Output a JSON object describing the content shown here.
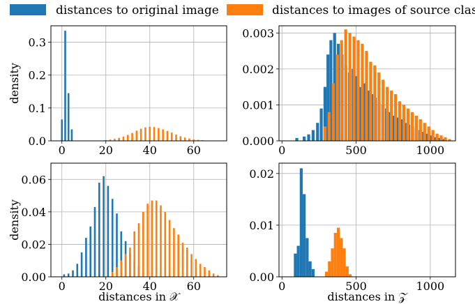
{
  "legend": {
    "entries": [
      {
        "label": "distances to original image",
        "color": "#1f77b4"
      },
      {
        "label": "distances to images of source class",
        "color": "#ff7f0e"
      }
    ]
  },
  "chart_data": [
    {
      "type": "bar",
      "panel": "top-left",
      "xlabel": "",
      "ylabel": "density",
      "xlim": [
        -5,
        75
      ],
      "ylim": [
        0,
        0.35
      ],
      "xticks": [
        "0",
        "20",
        "40",
        "60"
      ],
      "yticks": [
        "0.0",
        "0.1",
        "0.2",
        "0.3"
      ],
      "grid": true,
      "series": [
        {
          "name": "distances to original image",
          "x": [
            0,
            1.5,
            3,
            4.5
          ],
          "values": [
            0.065,
            0.335,
            0.145,
            0.035
          ]
        },
        {
          "name": "distances to images of source class",
          "x": [
            20,
            22,
            24,
            26,
            28,
            30,
            32,
            34,
            36,
            38,
            40,
            42,
            44,
            46,
            48,
            50,
            52,
            54,
            56,
            58,
            60,
            62,
            64,
            66
          ],
          "values": [
            0.002,
            0.004,
            0.006,
            0.009,
            0.013,
            0.018,
            0.024,
            0.031,
            0.037,
            0.041,
            0.043,
            0.042,
            0.039,
            0.035,
            0.03,
            0.025,
            0.019,
            0.014,
            0.01,
            0.007,
            0.004,
            0.003,
            0.002,
            0.001
          ]
        }
      ]
    },
    {
      "type": "bar",
      "panel": "top-right",
      "xlabel": "",
      "ylabel": "",
      "xlim": [
        -20,
        1170
      ],
      "ylim": [
        0,
        0.0032
      ],
      "xticks": [
        "0",
        "500",
        "1000"
      ],
      "yticks": [
        "0.000",
        "0.001",
        "0.002",
        "0.003"
      ],
      "grid": true,
      "series": [
        {
          "name": "distances to original image",
          "x": [
            100,
            150,
            180,
            210,
            240,
            265,
            290,
            310,
            330,
            355,
            380,
            405,
            430,
            455,
            480,
            505,
            530,
            555,
            580,
            605,
            630,
            655,
            680,
            705,
            730,
            755,
            780,
            805,
            830,
            855,
            880,
            905,
            930,
            955,
            980,
            1005,
            1030,
            1060,
            1090
          ],
          "values": [
            8e-05,
            0.00012,
            0.00018,
            0.0003,
            0.0005,
            0.0009,
            0.0015,
            0.0024,
            0.0028,
            0.003,
            0.0027,
            0.0024,
            0.0021,
            0.0019,
            0.002,
            0.0018,
            0.0015,
            0.0016,
            0.0014,
            0.0013,
            0.0012,
            0.0011,
            0.001,
            0.0009,
            0.0008,
            0.0007,
            0.00065,
            0.0006,
            0.0005,
            0.00045,
            0.0004,
            0.00035,
            0.0003,
            0.00025,
            0.0002,
            0.00015,
            0.0001,
            8e-05,
            5e-05
          ]
        },
        {
          "name": "distances to images of source class",
          "x": [
            290,
            318,
            346,
            374,
            402,
            430,
            458,
            486,
            514,
            542,
            570,
            598,
            626,
            654,
            682,
            710,
            738,
            766,
            794,
            822,
            850,
            878,
            906,
            934,
            962,
            990,
            1018,
            1046,
            1074,
            1102,
            1130
          ],
          "values": [
            0.0004,
            0.0008,
            0.0016,
            0.0024,
            0.0028,
            0.0031,
            0.003,
            0.0029,
            0.0028,
            0.0027,
            0.0025,
            0.0022,
            0.0021,
            0.0019,
            0.0017,
            0.0015,
            0.0014,
            0.0013,
            0.0011,
            0.001,
            0.0009,
            0.0008,
            0.0007,
            0.0006,
            0.0005,
            0.0004,
            0.0003,
            0.0002,
            0.00015,
            0.0001,
            5e-05
          ]
        }
      ]
    },
    {
      "type": "bar",
      "panel": "bottom-left",
      "xlabel": "distances in 𝒳",
      "ylabel": "density",
      "xlim": [
        -5,
        75
      ],
      "ylim": [
        0,
        0.07
      ],
      "xticks": [
        "0",
        "20",
        "40",
        "60"
      ],
      "yticks": [
        "0.00",
        "0.02",
        "0.04",
        "0.06"
      ],
      "grid": true,
      "series": [
        {
          "name": "distances to original image",
          "x": [
            1,
            3,
            5,
            7,
            9,
            11,
            13,
            15,
            17,
            19,
            21,
            23,
            25,
            27,
            29,
            31,
            33,
            35,
            37
          ],
          "values": [
            0.0015,
            0.002,
            0.004,
            0.008,
            0.015,
            0.024,
            0.031,
            0.043,
            0.058,
            0.062,
            0.056,
            0.048,
            0.039,
            0.028,
            0.022,
            0.015,
            0.01,
            0.006,
            0.003
          ]
        },
        {
          "name": "distances to images of source class",
          "x": [
            23,
            25,
            27,
            29,
            31,
            33,
            35,
            37,
            39,
            41,
            43,
            45,
            47,
            49,
            51,
            53,
            55,
            57,
            59,
            61,
            63,
            65,
            67,
            69,
            71
          ],
          "values": [
            0.003,
            0.006,
            0.01,
            0.014,
            0.018,
            0.028,
            0.033,
            0.04,
            0.045,
            0.047,
            0.047,
            0.044,
            0.04,
            0.035,
            0.03,
            0.026,
            0.021,
            0.018,
            0.014,
            0.011,
            0.008,
            0.006,
            0.004,
            0.002,
            0.001
          ]
        }
      ]
    },
    {
      "type": "bar",
      "panel": "bottom-right",
      "xlabel": "distances in 𝒵",
      "ylabel": "",
      "xlim": [
        -20,
        1170
      ],
      "ylim": [
        0,
        0.022
      ],
      "xticks": [
        "0",
        "500",
        "1000"
      ],
      "yticks": [
        "0.00",
        "0.01",
        "0.02"
      ],
      "grid": true,
      "series": [
        {
          "name": "distances to original image",
          "x": [
            90,
            110,
            130,
            150,
            170,
            190,
            210
          ],
          "values": [
            0.0045,
            0.006,
            0.021,
            0.016,
            0.0075,
            0.003,
            0.0015
          ]
        },
        {
          "name": "distances to images of source class",
          "x": [
            300,
            320,
            340,
            360,
            380,
            400,
            420,
            440,
            460
          ],
          "values": [
            0.001,
            0.003,
            0.0055,
            0.0085,
            0.0095,
            0.0075,
            0.0055,
            0.002,
            0.0005
          ]
        }
      ]
    }
  ]
}
